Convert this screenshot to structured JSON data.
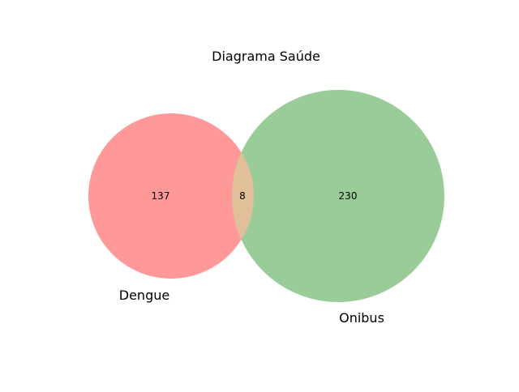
{
  "title": "Diagrama Saúde",
  "sets": [
    {
      "name": "Dengue",
      "color": "#ff9999"
    },
    {
      "name": "Onibus",
      "color": "#99cc99"
    }
  ],
  "overlap_color": "#e0bf99",
  "counts": {
    "only_a": "137",
    "both": "8",
    "only_b": "230"
  }
}
